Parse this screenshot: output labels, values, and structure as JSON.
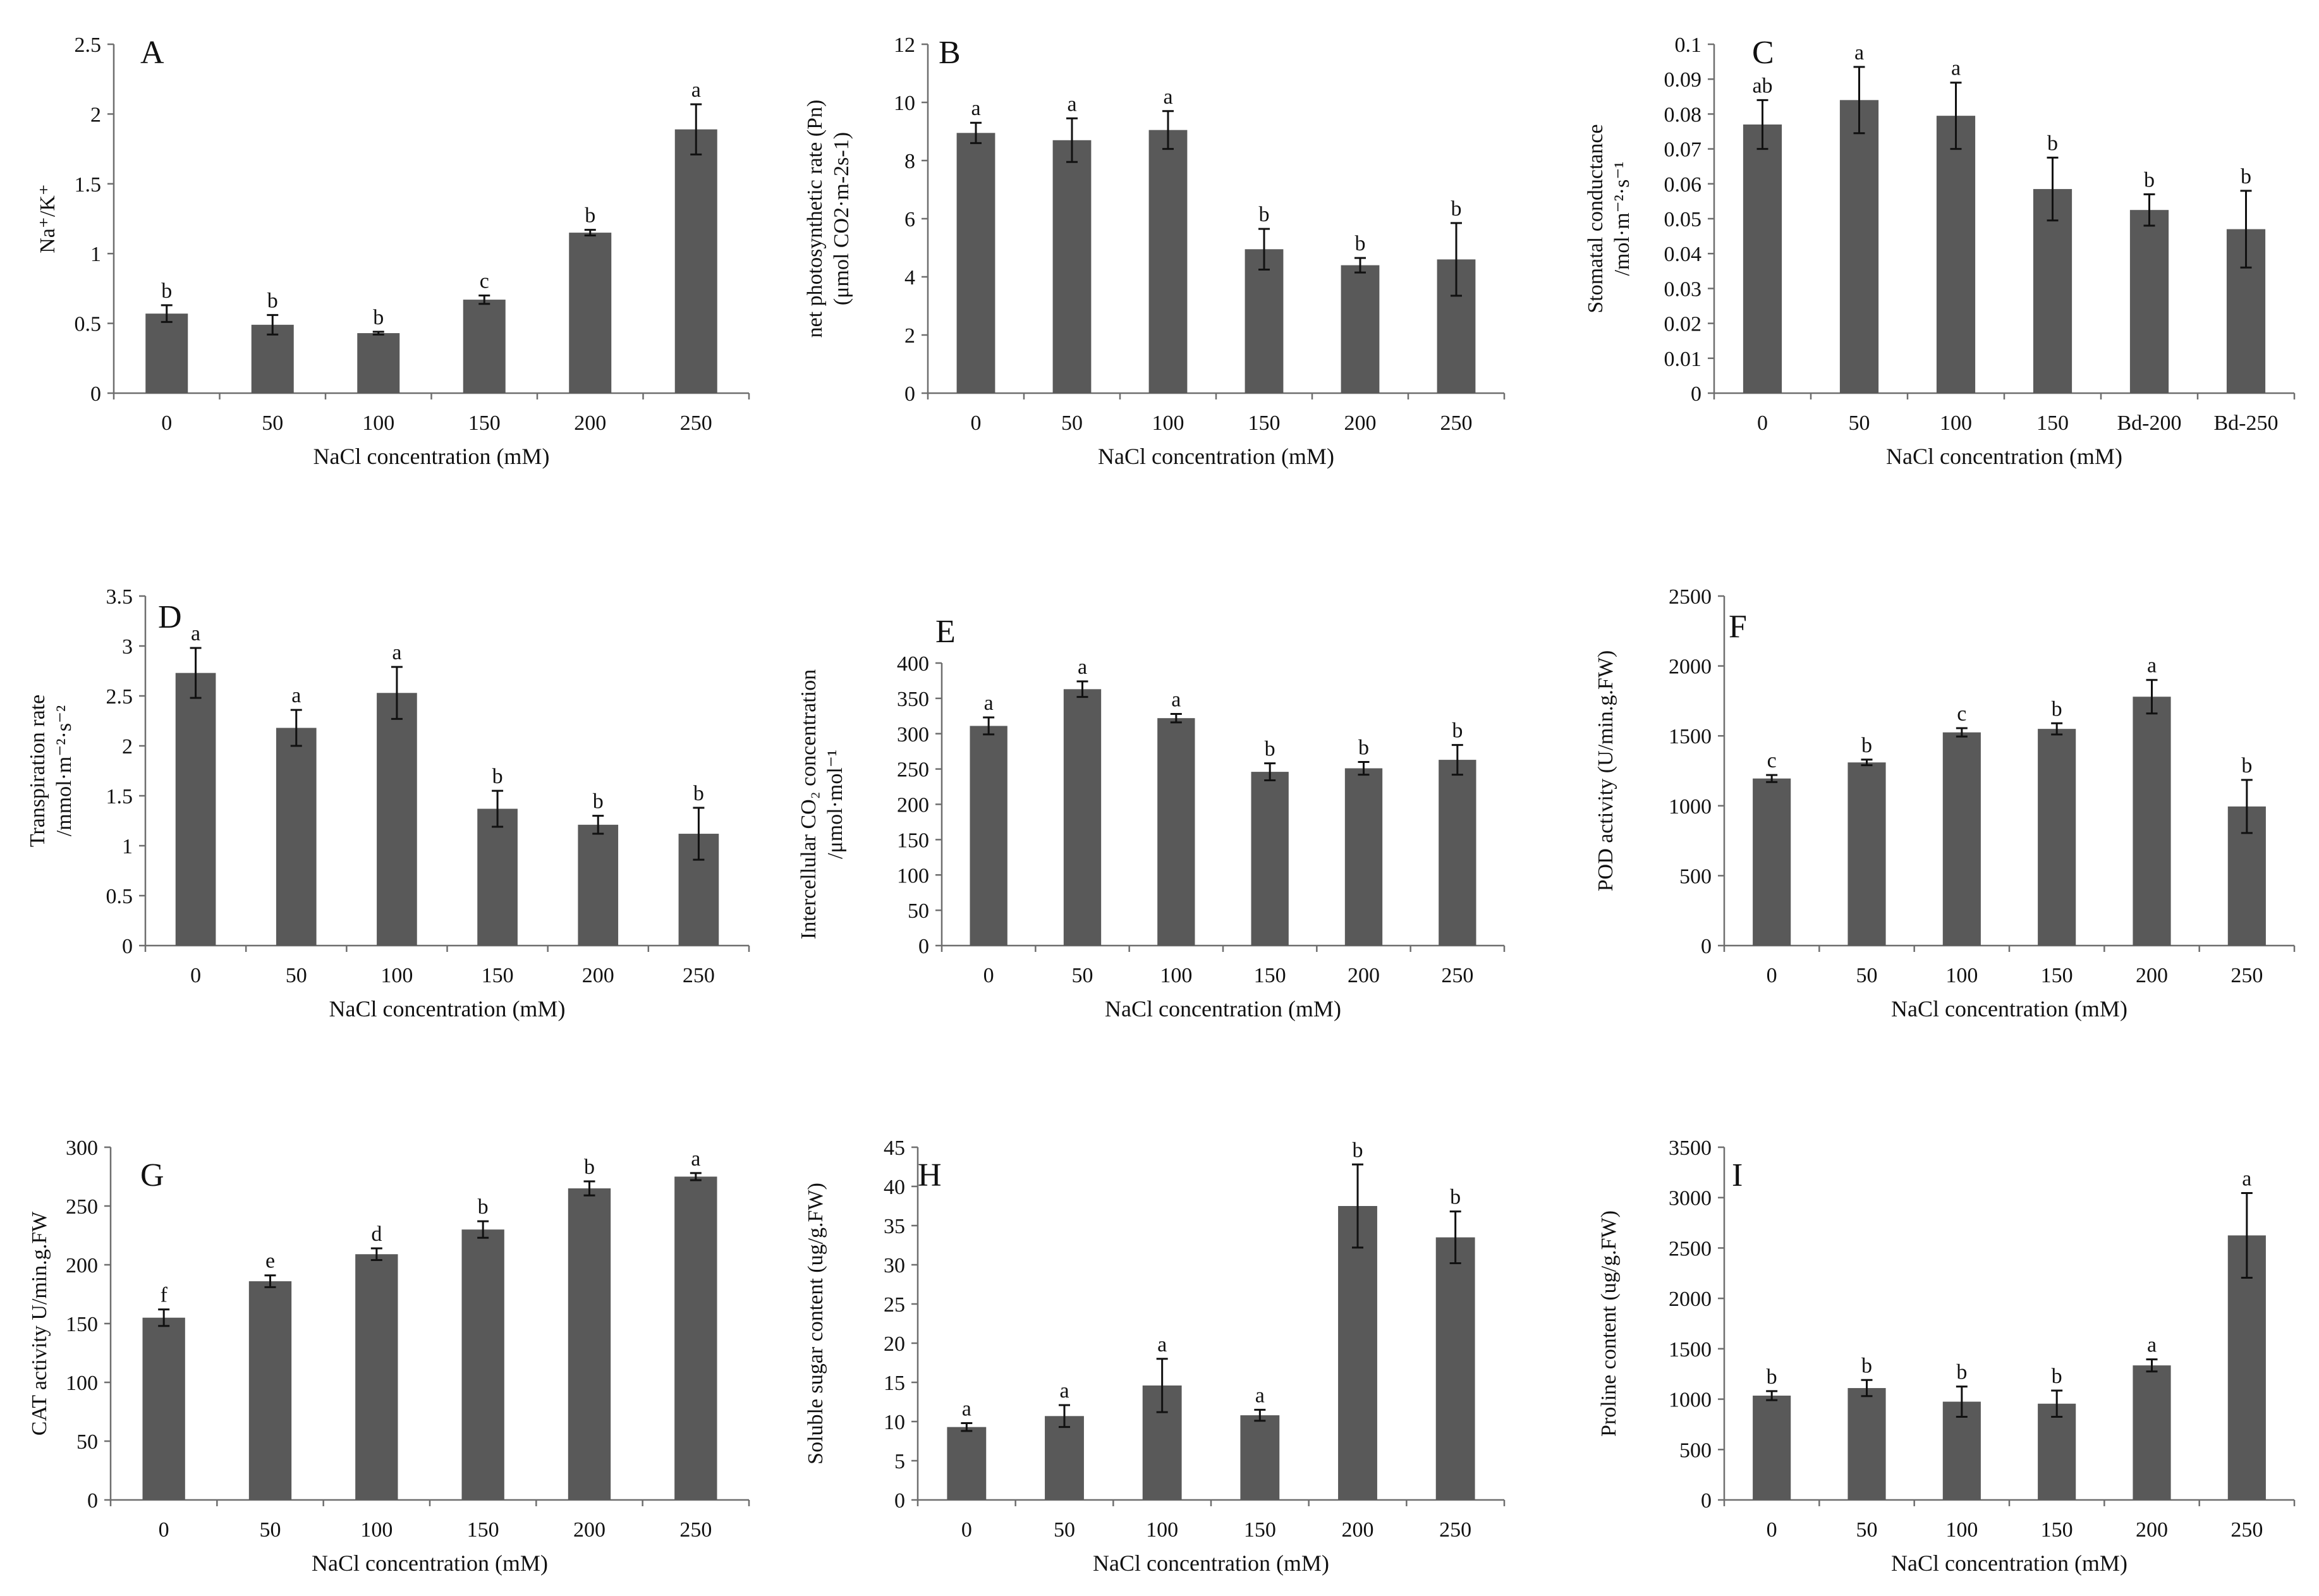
{
  "chart_data": [
    {
      "type": "bar",
      "panel": "A",
      "categories": [
        "0",
        "50",
        "100",
        "150",
        "200",
        "250"
      ],
      "values": [
        0.57,
        0.49,
        0.43,
        0.67,
        1.15,
        1.89
      ],
      "errors": [
        0.06,
        0.07,
        0.01,
        0.03,
        0.02,
        0.18
      ],
      "significance": [
        "b",
        "b",
        "b",
        "c",
        "b",
        "a"
      ],
      "xlabel": "NaCl concentration (mM)",
      "ylabel": "Na⁺/K⁺",
      "ylim": [
        0,
        2.5
      ],
      "yticks": [
        "0",
        "0.5",
        "1",
        "1.5",
        "2",
        "2.5"
      ]
    },
    {
      "type": "bar",
      "panel": "B",
      "categories": [
        "0",
        "50",
        "100",
        "150",
        "200",
        "250"
      ],
      "values": [
        8.95,
        8.7,
        9.05,
        4.95,
        4.4,
        4.6
      ],
      "errors": [
        0.35,
        0.75,
        0.65,
        0.7,
        0.25,
        1.25
      ],
      "significance": [
        "a",
        "a",
        "a",
        "b",
        "b",
        "b"
      ],
      "xlabel": "NaCl concentration (mM)",
      "ylabel": [
        "net photosynthetic rate (Pn)",
        "(μmol CO2·m-2s-1)"
      ],
      "ylim": [
        0,
        12
      ],
      "yticks": [
        "0",
        "2",
        "4",
        "6",
        "8",
        "10",
        "12"
      ]
    },
    {
      "type": "bar",
      "panel": "C",
      "categories": [
        "0",
        "50",
        "100",
        "150",
        "Bd-200",
        "Bd-250"
      ],
      "values": [
        0.077,
        0.084,
        0.0795,
        0.0585,
        0.0525,
        0.047
      ],
      "errors": [
        0.007,
        0.0095,
        0.0095,
        0.009,
        0.0045,
        0.011
      ],
      "significance": [
        "ab",
        "a",
        "a",
        "b",
        "b",
        "b"
      ],
      "xlabel": "NaCl concentration (mM)",
      "ylabel": [
        "Stomatal conductance",
        "/mol·m⁻²·s⁻¹"
      ],
      "ylim": [
        0,
        0.1
      ],
      "yticks": [
        "0",
        "0.01",
        "0.02",
        "0.03",
        "0.04",
        "0.05",
        "0.06",
        "0.07",
        "0.08",
        "0.09",
        "0.1"
      ]
    },
    {
      "type": "bar",
      "panel": "D",
      "categories": [
        "0",
        "50",
        "100",
        "150",
        "200",
        "250"
      ],
      "values": [
        2.73,
        2.18,
        2.53,
        1.37,
        1.21,
        1.12
      ],
      "errors": [
        0.25,
        0.18,
        0.26,
        0.18,
        0.09,
        0.26
      ],
      "significance": [
        "a",
        "a",
        "a",
        "b",
        "b",
        "b"
      ],
      "xlabel": "NaCl concentration (mM)",
      "ylabel": [
        "Transpiration rate",
        "/mmol·m⁻²·s⁻²"
      ],
      "ylim": [
        0,
        3.5
      ],
      "yticks": [
        "0",
        "0.5",
        "1",
        "1.5",
        "2",
        "2.5",
        "3",
        "3.5"
      ]
    },
    {
      "type": "bar",
      "panel": "E",
      "categories": [
        "0",
        "50",
        "100",
        "150",
        "200",
        "250"
      ],
      "values": [
        311,
        363,
        322,
        246,
        251,
        263
      ],
      "errors": [
        12,
        11,
        6,
        12,
        9,
        21
      ],
      "significance": [
        "a",
        "a",
        "a",
        "b",
        "b",
        "b"
      ],
      "xlabel": "NaCl concentration (mM)",
      "ylabel": [
        "Intercellular CO₂ concentration",
        "/μmol·mol⁻¹"
      ],
      "ylim": [
        0,
        400
      ],
      "yticks": [
        "0",
        "50",
        "100",
        "150",
        "200",
        "250",
        "300",
        "350",
        "400"
      ]
    },
    {
      "type": "bar",
      "panel": "F",
      "categories": [
        "0",
        "50",
        "100",
        "150",
        "200",
        "250"
      ],
      "values": [
        1195,
        1310,
        1525,
        1550,
        1780,
        995
      ],
      "errors": [
        25,
        20,
        30,
        40,
        120,
        190
      ],
      "significance": [
        "c",
        "b",
        "c",
        "b",
        "a",
        "b"
      ],
      "xlabel": "NaCl concentration (mM)",
      "ylabel": "POD activity (U/min.g.FW)",
      "ylim": [
        0,
        2500
      ],
      "yticks": [
        "0",
        "500",
        "1000",
        "1500",
        "2000",
        "2500"
      ]
    },
    {
      "type": "bar",
      "panel": "G",
      "categories": [
        "0",
        "50",
        "100",
        "150",
        "200",
        "250"
      ],
      "values": [
        155,
        186,
        209,
        230,
        265,
        275
      ],
      "errors": [
        7,
        5,
        5,
        7,
        6,
        3
      ],
      "significance": [
        "f",
        "e",
        "d",
        "b",
        "b",
        "a"
      ],
      "xlabel": "NaCl concentration (mM)",
      "ylabel": "CAT activity U/min.g.FW",
      "ylim": [
        0,
        300
      ],
      "yticks": [
        "0",
        "50",
        "100",
        "150",
        "200",
        "250",
        "300"
      ]
    },
    {
      "type": "bar",
      "panel": "H",
      "categories": [
        "0",
        "50",
        "100",
        "150",
        "200",
        "250"
      ],
      "values": [
        9.3,
        10.7,
        14.6,
        10.8,
        37.5,
        33.5
      ],
      "errors": [
        0.5,
        1.4,
        3.4,
        0.7,
        5.3,
        3.3
      ],
      "significance": [
        "a",
        "a",
        "a",
        "a",
        "b",
        "b"
      ],
      "xlabel": "NaCl concentration (mM)",
      "ylabel": "Soluble sugar content (ug/g.FW)",
      "ylim": [
        0,
        45
      ],
      "yticks": [
        "0",
        "5",
        "10",
        "15",
        "20",
        "25",
        "30",
        "35",
        "40",
        "45"
      ]
    },
    {
      "type": "bar",
      "panel": "I",
      "categories": [
        "0",
        "50",
        "100",
        "150",
        "200",
        "250"
      ],
      "values": [
        1035,
        1110,
        975,
        955,
        1335,
        2625
      ],
      "errors": [
        45,
        80,
        150,
        130,
        60,
        420
      ],
      "significance": [
        "b",
        "b",
        "b",
        "b",
        "a",
        "a"
      ],
      "xlabel": "NaCl concentration (mM)",
      "ylabel": "Proline content (ug/g.FW)",
      "ylim": [
        0,
        3500
      ],
      "yticks": [
        "0",
        "500",
        "1000",
        "1500",
        "2000",
        "2500",
        "3000",
        "3500"
      ]
    }
  ]
}
